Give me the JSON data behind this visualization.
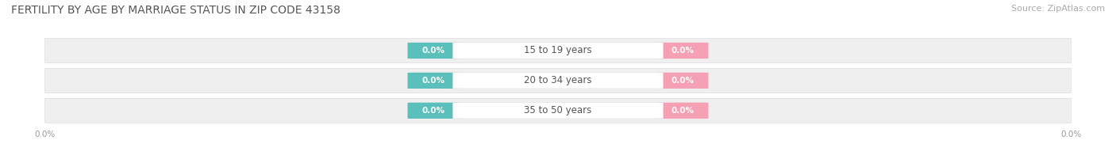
{
  "title": "FERTILITY BY AGE BY MARRIAGE STATUS IN ZIP CODE 43158",
  "source": "Source: ZipAtlas.com",
  "age_groups": [
    "15 to 19 years",
    "20 to 34 years",
    "35 to 50 years"
  ],
  "married_values": [
    0.0,
    0.0,
    0.0
  ],
  "unmarried_values": [
    0.0,
    0.0,
    0.0
  ],
  "married_color": "#5BBFBB",
  "unmarried_color": "#F5A0B5",
  "row_bg_color": "#EFEFEF",
  "row_border_color": "#DDDDDD",
  "title_fontsize": 10,
  "source_fontsize": 8,
  "label_fontsize": 8.5,
  "value_fontsize": 7.5,
  "background_color": "#FFFFFF",
  "tick_color": "#999999",
  "text_color": "#555555"
}
